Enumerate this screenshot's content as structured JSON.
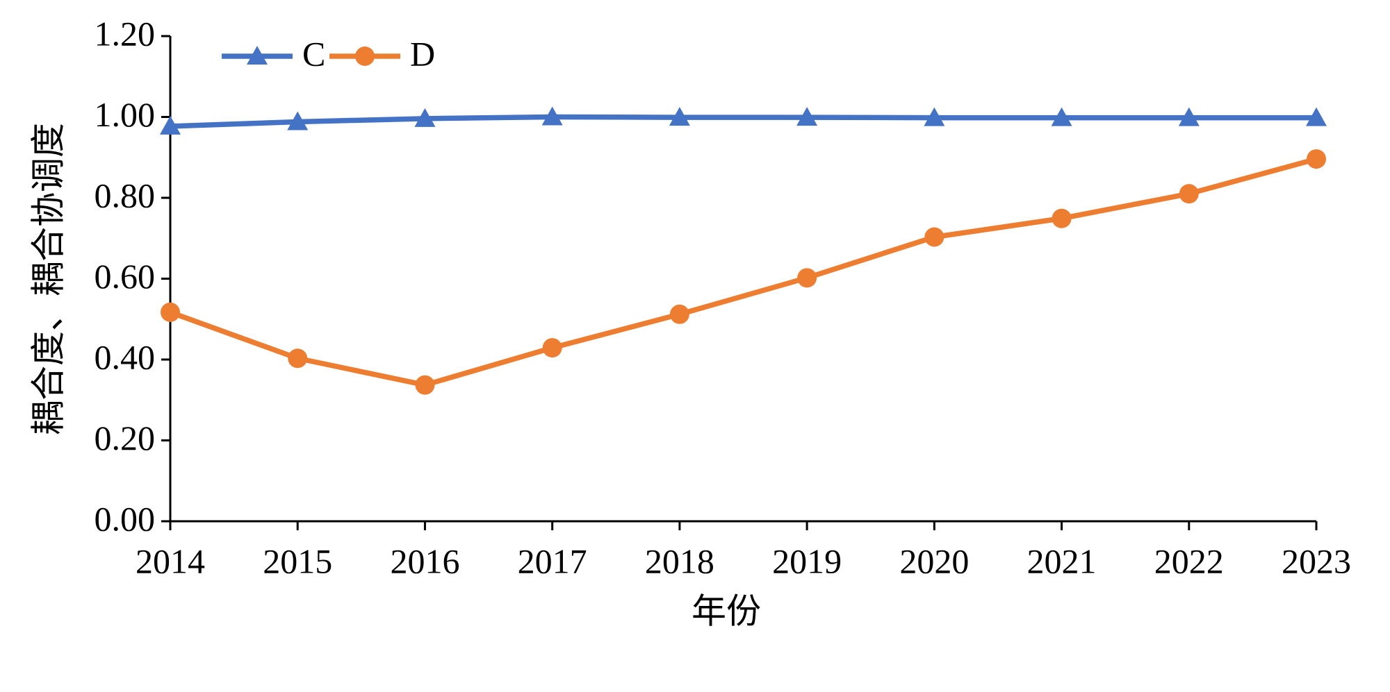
{
  "chart_data": {
    "type": "line",
    "x_label": "年份",
    "y_label": "耦合度、耦合协调度",
    "categories": [
      "2014",
      "2015",
      "2016",
      "2017",
      "2018",
      "2019",
      "2020",
      "2021",
      "2022",
      "2023"
    ],
    "series": [
      {
        "name": "C",
        "color": "#4472c4",
        "marker": "triangle",
        "values": [
          0.977,
          0.988,
          0.996,
          1.0,
          0.999,
          0.999,
          0.998,
          0.998,
          0.998,
          0.998
        ]
      },
      {
        "name": "D",
        "color": "#ed7d31",
        "marker": "circle",
        "values": [
          0.517,
          0.403,
          0.337,
          0.429,
          0.512,
          0.602,
          0.703,
          0.749,
          0.81,
          0.896
        ]
      }
    ],
    "ylim": [
      0,
      1.2
    ],
    "yticks": [
      {
        "value": 0,
        "label": "0.00"
      },
      {
        "value": 0.2,
        "label": "0.20"
      },
      {
        "value": 0.4,
        "label": "0.40"
      },
      {
        "value": 0.6,
        "label": "0.60"
      },
      {
        "value": 0.8,
        "label": "0.80"
      },
      {
        "value": 1.0,
        "label": "1.00"
      },
      {
        "value": 1.2,
        "label": "1.20"
      }
    ],
    "grid": false,
    "legend": "top-left"
  }
}
